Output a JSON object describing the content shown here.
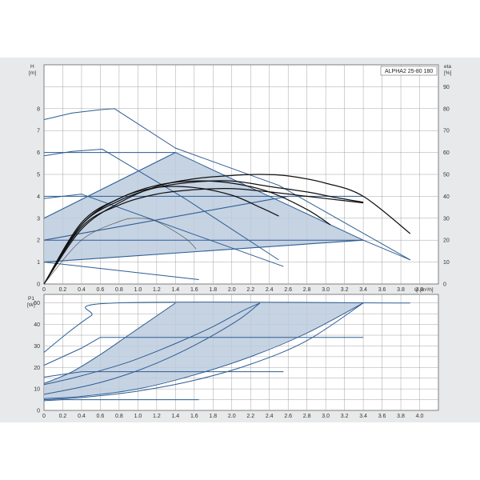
{
  "colors": {
    "panel": "#e8e9ea",
    "plot": "#ffffff",
    "grid": "#9a9a9a",
    "fill": "#bccbde",
    "curve_blue": "#2d5d94",
    "curve_black": "#111111",
    "curve_grey": "#444444"
  },
  "chart_data": [
    {
      "type": "line",
      "id": "head",
      "title": "ALPHA2 25-80 180",
      "ylabel": "H",
      "yunit": "[m]",
      "y2label": "eta",
      "y2unit": "[%]",
      "xlabel": "Q",
      "xunit": "[m³/h]",
      "xlim": [
        0,
        4.2
      ],
      "ylim": [
        0,
        10
      ],
      "y2lim": [
        0,
        100
      ],
      "grid": true,
      "x_ticks": [
        "0",
        "0.2",
        "0.4",
        "0.6",
        "0.8",
        "1.0",
        "1.2",
        "1.4",
        "1.6",
        "1.8",
        "2.0",
        "2.2",
        "2.4",
        "2.6",
        "2.8",
        "3.0",
        "3.2",
        "3.4",
        "3.6",
        "3.8",
        "4.0"
      ],
      "y_ticks": [
        "0",
        "1",
        "2",
        "3",
        "4",
        "5",
        "6",
        "7",
        "8"
      ],
      "y2_ticks": [
        "0",
        "10",
        "20",
        "30",
        "40",
        "50",
        "60",
        "70",
        "80",
        "90"
      ],
      "shaded_region": {
        "x": [
          0,
          1.4,
          3.4,
          0
        ],
        "y": [
          3.0,
          6.0,
          2.0,
          1.0
        ]
      },
      "series": [
        {
          "kind": "head",
          "x": [
            0,
            0.3,
            0.6,
            0.75,
            1.4,
            2.5,
            3.9
          ],
          "y": [
            7.5,
            7.8,
            7.95,
            8.0,
            6.2,
            4.5,
            1.1
          ]
        },
        {
          "kind": "head",
          "x": [
            0,
            1.4,
            3.4,
            3.9
          ],
          "y": [
            6.0,
            6.0,
            2.0,
            1.1
          ]
        },
        {
          "kind": "head",
          "x": [
            0,
            0.3,
            0.62,
            1.5,
            2.5
          ],
          "y": [
            5.85,
            6.05,
            6.15,
            3.9,
            1.1
          ]
        },
        {
          "kind": "head",
          "x": [
            0,
            3.4
          ],
          "y": [
            4.0,
            4.0
          ]
        },
        {
          "kind": "head",
          "x": [
            0,
            0.4,
            2.55
          ],
          "y": [
            3.9,
            4.1,
            0.8
          ]
        },
        {
          "kind": "head",
          "x": [
            0,
            3.4
          ],
          "y": [
            2.0,
            2.0
          ]
        },
        {
          "kind": "head",
          "x": [
            0,
            1.65
          ],
          "y": [
            1.0,
            0.2
          ]
        },
        {
          "kind": "prop",
          "x": [
            0,
            1.4
          ],
          "y": [
            3.0,
            6.0
          ]
        },
        {
          "kind": "prop",
          "x": [
            0,
            2.6
          ],
          "y": [
            2.0,
            4.0
          ]
        },
        {
          "kind": "prop",
          "x": [
            0,
            3.4
          ],
          "y": [
            1.0,
            2.0
          ]
        },
        {
          "kind": "eta",
          "x": [
            0,
            0.4,
            0.8,
            1.2,
            1.6,
            2.0,
            2.3,
            2.6,
            3.0,
            3.4,
            3.9
          ],
          "y": [
            0,
            25,
            37,
            44.5,
            48,
            49.5,
            50,
            49.3,
            46,
            40,
            23
          ]
        },
        {
          "kind": "eta",
          "x": [
            0,
            0.4,
            0.8,
            1.2,
            1.6,
            2.0,
            2.4,
            2.8,
            3.1,
            3.4
          ],
          "y": [
            0,
            27,
            38,
            44,
            46.5,
            47,
            44.5,
            42,
            39.5,
            37.3
          ]
        },
        {
          "kind": "eta",
          "x": [
            0,
            0.4,
            0.8,
            1.2,
            1.6,
            2.0,
            2.4,
            2.8,
            3.1,
            3.4
          ],
          "y": [
            0,
            26,
            36,
            41,
            43,
            43.5,
            42,
            40,
            38.5,
            37
          ]
        },
        {
          "kind": "eta",
          "x": [
            0,
            0.4,
            0.8,
            1.2,
            1.6,
            2.0,
            2.4,
            2.8,
            3.05
          ],
          "y": [
            0,
            28,
            39,
            45,
            47,
            46,
            42,
            34,
            27
          ]
        },
        {
          "kind": "eta",
          "x": [
            0,
            0.4,
            0.8,
            1.2,
            1.6,
            2.0,
            2.3,
            2.5
          ],
          "y": [
            0,
            27,
            39,
            44,
            44,
            40.5,
            35,
            31
          ]
        },
        {
          "kind": "eta_thin",
          "x": [
            0,
            0.4,
            0.8,
            1.0,
            1.2,
            1.5,
            1.62
          ],
          "y": [
            0,
            20,
            28.5,
            30,
            28.5,
            21,
            16
          ]
        }
      ]
    },
    {
      "type": "line",
      "id": "power",
      "ylabel": "P1",
      "yunit": "[W]",
      "xlabel": "Q",
      "xunit": "[m³/h]",
      "xlim": [
        0,
        4.2
      ],
      "ylim": [
        0,
        54
      ],
      "grid": true,
      "x_ticks": [
        "0",
        "0.2",
        "0.4",
        "0.6",
        "0.8",
        "1.0",
        "1.2",
        "1.4",
        "1.6",
        "1.8",
        "2.0",
        "2.2",
        "2.4",
        "2.6",
        "2.8",
        "3.0",
        "3.2",
        "3.4",
        "3.6",
        "3.8",
        "4.0"
      ],
      "y_ticks": [
        "0",
        "10",
        "20",
        "30",
        "40",
        "50"
      ],
      "shaded_region": {
        "x": [
          0,
          0.3,
          0.6,
          0.9,
          1.2,
          1.4,
          3.4,
          2.8,
          2.2,
          1.6,
          1.0,
          0.4,
          0
        ],
        "y": [
          12.5,
          18,
          26,
          35,
          44,
          50,
          50,
          36,
          25,
          16.5,
          10,
          6.5,
          5.5
        ]
      },
      "series": [
        {
          "kind": "power",
          "x": [
            0,
            0.25,
            0.5,
            0.75,
            3.9
          ],
          "y": [
            27,
            36,
            44,
            50,
            50
          ]
        },
        {
          "kind": "power",
          "x": [
            0,
            0.3,
            0.6,
            0.9,
            1.2,
            1.4
          ],
          "y": [
            12.5,
            18,
            26,
            35,
            44,
            50
          ]
        },
        {
          "kind": "power",
          "x": [
            0,
            0.3,
            0.6,
            0.9,
            1.2,
            1.5,
            1.8,
            2.1,
            2.3
          ],
          "y": [
            12,
            15,
            18.5,
            22.5,
            27.5,
            33,
            39,
            46,
            50
          ]
        },
        {
          "kind": "power",
          "x": [
            0,
            0.3,
            0.6,
            0.9,
            1.2,
            1.5,
            1.8,
            2.1,
            2.3
          ],
          "y": [
            7.5,
            10,
            13,
            17,
            22,
            28,
            35,
            43,
            50
          ]
        },
        {
          "kind": "power",
          "x": [
            0,
            0.4,
            1.0,
            1.6,
            2.2,
            2.8,
            3.4
          ],
          "y": [
            5.5,
            6.5,
            10,
            16.5,
            25,
            36,
            50
          ]
        },
        {
          "kind": "power",
          "x": [
            0,
            0.4,
            1.0,
            1.6,
            2.2,
            2.8,
            3.4
          ],
          "y": [
            5,
            6,
            9,
            14,
            21.5,
            32.5,
            50
          ]
        },
        {
          "kind": "power",
          "x": [
            0,
            0.4,
            0.6,
            3.4
          ],
          "y": [
            21,
            29,
            34,
            34
          ]
        },
        {
          "kind": "power",
          "x": [
            0,
            0.4,
            2.55
          ],
          "y": [
            15.5,
            18,
            18
          ]
        },
        {
          "kind": "power",
          "x": [
            0,
            0.2,
            1.65
          ],
          "y": [
            4.5,
            5,
            5
          ]
        }
      ]
    }
  ]
}
